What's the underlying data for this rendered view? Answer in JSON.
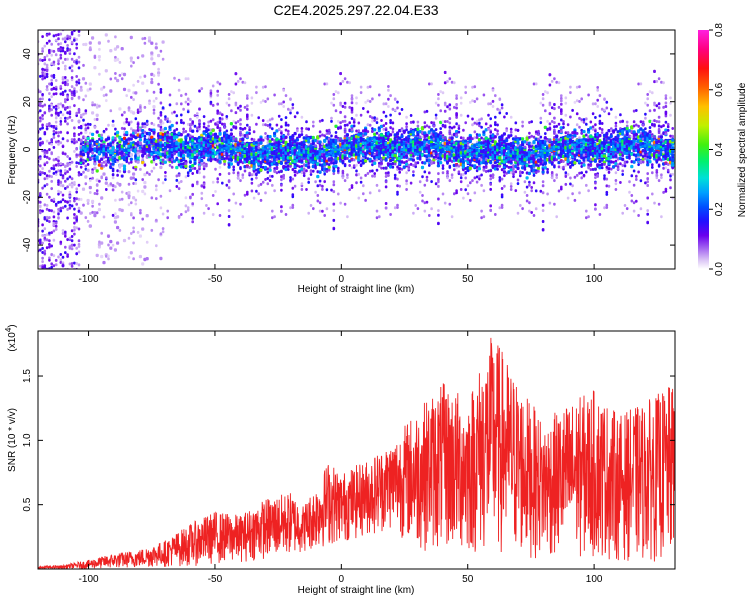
{
  "title": "C2E4.2025.297.22.04.E33",
  "colors": {
    "snr_line": "#ee2222",
    "frame": "#000000",
    "colormap": [
      "#f4ecfb",
      "#c9a6f2",
      "#8d3cf0",
      "#5a00e6",
      "#1c1cff",
      "#0078ff",
      "#00c8e8",
      "#00e87a",
      "#4de81c",
      "#c8e800",
      "#ffb000",
      "#ff3a00",
      "#ff00c8"
    ]
  },
  "chart_data": [
    {
      "type": "heatmap",
      "xlabel": "Height of straight line (km)",
      "ylabel": "Frequency (Hz)",
      "xlim": [
        -120,
        132
      ],
      "ylim": [
        -50,
        50
      ],
      "xticks": [
        -100,
        -50,
        0,
        50,
        100
      ],
      "yticks": [
        -40,
        -20,
        0,
        20,
        40
      ],
      "grid": false,
      "colorbar": {
        "label": "Normalized spectral amplitude",
        "range": [
          0.0,
          0.8
        ],
        "ticks": [
          0.0,
          0.2,
          0.4,
          0.6,
          0.8
        ]
      },
      "band": {
        "center_hz": 0,
        "core_halfwidth_hz": 8,
        "typical_amplitude": 0.2,
        "peak_amplitude": 0.8,
        "noisy_region_km": [
          -120,
          -103
        ]
      }
    },
    {
      "type": "line",
      "xlabel": "Height of straight line (km)",
      "ylabel": "SNR (10 * v/v)",
      "y_multiplier_label": "(x10",
      "y_multiplier_exp": "4",
      "y_multiplier_close": ")",
      "xlim": [
        -120,
        132
      ],
      "ylim": [
        0,
        1.85
      ],
      "xticks": [
        -100,
        -50,
        0,
        50,
        100
      ],
      "yticks": [
        0.5,
        1.0,
        1.5
      ],
      "grid": false,
      "envelope_max": [
        [
          -120,
          0.02
        ],
        [
          -110,
          0.03
        ],
        [
          -100,
          0.07
        ],
        [
          -90,
          0.12
        ],
        [
          -80,
          0.15
        ],
        [
          -70,
          0.22
        ],
        [
          -60,
          0.35
        ],
        [
          -50,
          0.45
        ],
        [
          -40,
          0.42
        ],
        [
          -30,
          0.55
        ],
        [
          -20,
          0.6
        ],
        [
          -15,
          0.5
        ],
        [
          -10,
          0.65
        ],
        [
          -5,
          0.85
        ],
        [
          0,
          0.75
        ],
        [
          10,
          0.85
        ],
        [
          20,
          1.0
        ],
        [
          30,
          1.25
        ],
        [
          40,
          1.45
        ],
        [
          50,
          1.35
        ],
        [
          60,
          1.85
        ],
        [
          70,
          1.45
        ],
        [
          80,
          1.15
        ],
        [
          90,
          1.3
        ],
        [
          100,
          1.4
        ],
        [
          110,
          1.2
        ],
        [
          120,
          1.3
        ],
        [
          132,
          1.45
        ]
      ],
      "envelope_min": [
        [
          -120,
          0.0
        ],
        [
          -100,
          0.0
        ],
        [
          -80,
          0.01
        ],
        [
          -60,
          0.02
        ],
        [
          -40,
          0.05
        ],
        [
          -20,
          0.1
        ],
        [
          -10,
          0.15
        ],
        [
          0,
          0.2
        ],
        [
          10,
          0.25
        ],
        [
          20,
          0.3
        ],
        [
          30,
          0.15
        ],
        [
          50,
          0.1
        ],
        [
          70,
          0.08
        ],
        [
          90,
          0.08
        ],
        [
          110,
          0.06
        ],
        [
          132,
          0.05
        ]
      ]
    }
  ]
}
